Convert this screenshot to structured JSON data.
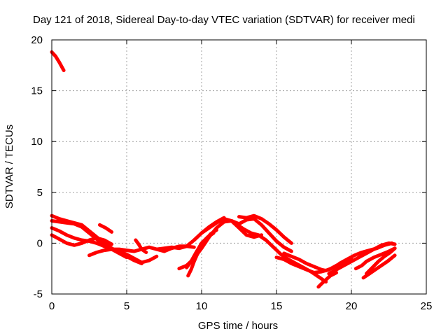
{
  "chart_data": {
    "type": "scatter",
    "title": "Day 121 of 2018, Sidereal Day-to-day VTEC variation (SDTVAR) for receiver medi",
    "xlabel": "GPS time / hours",
    "ylabel": "SDTVAR / TECUs",
    "xlim": [
      0,
      25
    ],
    "ylim": [
      -5,
      20
    ],
    "xticks": [
      0,
      5,
      10,
      15,
      20,
      25
    ],
    "yticks": [
      -5,
      0,
      5,
      10,
      15,
      20
    ],
    "xtick_labels": [
      "0",
      "5",
      "10",
      "15",
      "20",
      "25"
    ],
    "ytick_labels": [
      "-5",
      "0",
      "5",
      "10",
      "15",
      "20"
    ],
    "grid": true,
    "series_color": "#ff0000",
    "series": [
      {
        "name": "track-1",
        "x": [
          0.0,
          0.25,
          0.5,
          0.8
        ],
        "y": [
          18.8,
          18.4,
          17.8,
          17.0
        ]
      },
      {
        "name": "track-2",
        "x": [
          0.0,
          0.5,
          1.0,
          1.5,
          2.0,
          2.5,
          3.0,
          3.5,
          4.0,
          4.5,
          5.0,
          5.5,
          6.0
        ],
        "y": [
          2.7,
          2.4,
          2.2,
          2.0,
          1.8,
          1.2,
          0.6,
          0.0,
          -0.5,
          -0.9,
          -1.3,
          -1.7,
          -2.0
        ]
      },
      {
        "name": "track-3",
        "x": [
          0.0,
          0.5,
          1.0,
          1.5,
          2.0,
          2.5,
          3.0,
          3.5,
          4.0,
          4.5,
          5.0
        ],
        "y": [
          2.2,
          2.1,
          2.0,
          1.9,
          1.6,
          1.0,
          0.4,
          -0.2,
          -0.6,
          -1.0,
          -1.4
        ]
      },
      {
        "name": "track-4",
        "x": [
          0.0,
          0.5,
          1.0,
          1.5,
          2.0,
          2.5,
          3.0,
          3.5,
          4.0,
          4.5,
          5.0,
          5.5,
          6.0,
          6.5,
          7.0
        ],
        "y": [
          1.5,
          1.2,
          0.8,
          0.5,
          0.3,
          0.2,
          0.0,
          -0.3,
          -0.6,
          -0.8,
          -1.1,
          -1.5,
          -1.9,
          -1.7,
          -1.3
        ]
      },
      {
        "name": "track-5",
        "x": [
          0.0,
          0.5,
          1.0,
          1.5,
          2.0,
          2.5,
          3.0,
          3.5,
          4.0
        ],
        "y": [
          0.8,
          0.4,
          0.0,
          -0.2,
          0.0,
          0.3,
          0.5,
          0.3,
          -0.1
        ]
      },
      {
        "name": "track-6",
        "x": [
          3.2,
          3.6,
          4.0
        ],
        "y": [
          1.8,
          1.5,
          1.1
        ]
      },
      {
        "name": "track-7",
        "x": [
          2.5,
          3.0,
          3.5,
          4.0,
          4.5,
          5.0,
          5.5,
          6.0,
          6.5,
          7.0,
          7.5,
          8.0,
          8.5,
          9.0,
          9.5
        ],
        "y": [
          -1.2,
          -0.9,
          -0.7,
          -0.6,
          -0.6,
          -0.7,
          -0.8,
          -0.6,
          -0.4,
          -0.6,
          -0.8,
          -0.5,
          -0.3,
          -0.3,
          -0.4
        ]
      },
      {
        "name": "track-8",
        "x": [
          5.6,
          5.8,
          6.0,
          6.3
        ],
        "y": [
          0.3,
          -0.1,
          -0.6,
          -0.9
        ]
      },
      {
        "name": "track-9",
        "x": [
          7.0,
          7.5,
          8.0,
          8.5,
          9.0,
          9.5,
          10.0,
          10.5,
          11.0,
          11.5
        ],
        "y": [
          -0.6,
          -0.5,
          -0.4,
          -0.5,
          -0.3,
          0.3,
          1.0,
          1.6,
          2.1,
          2.5
        ]
      },
      {
        "name": "track-10",
        "x": [
          9.0,
          9.3,
          9.6,
          10.0,
          10.4,
          10.8
        ],
        "y": [
          -2.4,
          -1.8,
          -1.0,
          0.0,
          0.6,
          1.0
        ]
      },
      {
        "name": "track-11",
        "x": [
          9.1,
          9.3,
          9.5,
          9.8,
          10.2,
          10.6,
          11.0
        ],
        "y": [
          -3.2,
          -2.6,
          -1.8,
          -0.8,
          0.2,
          0.9,
          1.3
        ]
      },
      {
        "name": "track-12",
        "x": [
          8.5,
          9.0,
          9.5,
          10.0,
          10.5,
          11.0,
          11.5,
          12.0,
          12.5,
          13.0,
          13.5,
          14.0
        ],
        "y": [
          -2.5,
          -2.2,
          -1.5,
          -0.5,
          0.6,
          1.5,
          2.1,
          2.2,
          1.5,
          0.8,
          0.6,
          0.8
        ]
      },
      {
        "name": "track-13",
        "x": [
          10.0,
          10.5,
          11.0,
          11.5,
          12.0,
          12.5,
          13.0,
          13.5,
          14.0,
          14.5,
          15.0,
          15.5,
          16.0
        ],
        "y": [
          1.0,
          1.5,
          2.0,
          2.4,
          2.2,
          1.9,
          2.3,
          2.4,
          1.8,
          1.0,
          0.2,
          -0.4,
          -0.8
        ]
      },
      {
        "name": "track-14",
        "x": [
          12.5,
          13.0,
          13.5,
          14.0,
          14.5,
          15.0,
          15.5,
          16.0
        ],
        "y": [
          2.6,
          2.5,
          2.7,
          2.4,
          1.9,
          1.3,
          0.6,
          0.0
        ]
      },
      {
        "name": "track-15",
        "x": [
          12.2,
          12.8,
          13.3,
          13.8,
          14.3,
          14.8,
          15.3,
          15.8,
          16.3,
          16.8,
          17.3,
          17.8,
          18.3
        ],
        "y": [
          2.0,
          1.4,
          1.0,
          0.8,
          0.3,
          -0.4,
          -1.1,
          -1.6,
          -2.0,
          -2.4,
          -2.8,
          -3.3,
          -3.8
        ]
      },
      {
        "name": "track-16",
        "x": [
          15.0,
          15.5,
          16.0,
          16.5,
          17.0,
          17.5,
          18.0,
          18.5,
          19.0,
          19.5,
          20.0
        ],
        "y": [
          -1.4,
          -1.6,
          -2.0,
          -2.3,
          -2.6,
          -2.9,
          -2.8,
          -2.6,
          -2.2,
          -1.8,
          -1.6
        ]
      },
      {
        "name": "track-17",
        "x": [
          15.5,
          16.0,
          16.5,
          17.0,
          17.5,
          18.0,
          18.3,
          18.8,
          19.3,
          19.8
        ],
        "y": [
          -1.0,
          -1.3,
          -1.6,
          -2.0,
          -2.3,
          -2.6,
          -2.7,
          -2.4,
          -2.0,
          -1.6
        ]
      },
      {
        "name": "track-18",
        "x": [
          17.8,
          18.0,
          18.3,
          18.6,
          19.0
        ],
        "y": [
          -4.3,
          -4.0,
          -3.6,
          -3.2,
          -2.9
        ]
      },
      {
        "name": "track-19",
        "x": [
          18.5,
          19.0,
          19.5,
          20.0,
          20.5,
          21.0,
          21.5,
          22.0,
          22.5,
          22.9
        ],
        "y": [
          -3.0,
          -2.6,
          -2.2,
          -1.8,
          -1.4,
          -1.0,
          -0.6,
          -0.2,
          0.0,
          -0.1
        ]
      },
      {
        "name": "track-20",
        "x": [
          19.2,
          19.7,
          20.2,
          20.7,
          21.2,
          21.7,
          22.2,
          22.7
        ],
        "y": [
          -2.0,
          -1.6,
          -1.2,
          -0.9,
          -0.7,
          -0.5,
          -0.2,
          0.0
        ]
      },
      {
        "name": "track-21",
        "x": [
          20.3,
          20.7,
          21.0,
          21.5,
          22.0,
          22.5,
          22.9
        ],
        "y": [
          -2.5,
          -2.2,
          -1.8,
          -1.4,
          -1.1,
          -0.8,
          -0.5
        ]
      },
      {
        "name": "track-22",
        "x": [
          20.8,
          21.2,
          21.6,
          22.0,
          22.4,
          22.9
        ],
        "y": [
          -3.4,
          -3.0,
          -2.6,
          -2.2,
          -1.8,
          -1.2
        ]
      },
      {
        "name": "track-23",
        "x": [
          21.0,
          21.4,
          21.8,
          22.2,
          22.6,
          22.9
        ],
        "y": [
          -3.0,
          -2.4,
          -1.8,
          -1.3,
          -0.9,
          -0.5
        ]
      }
    ]
  }
}
